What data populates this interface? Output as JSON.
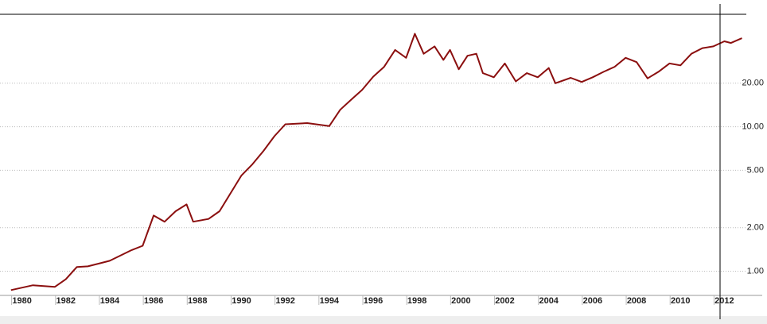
{
  "chart_data": {
    "type": "line",
    "x": [
      1979.5,
      1980.5,
      1981.5,
      1982,
      1982.5,
      1983,
      1984,
      1985,
      1985.5,
      1986,
      1986.5,
      1987,
      1987.5,
      1987.8,
      1988.5,
      1989,
      1990,
      1990.5,
      1991,
      1991.5,
      1992,
      1993,
      1994,
      1994.5,
      1995,
      1995.5,
      1996,
      1996.5,
      1997,
      1997.5,
      1997.9,
      1998.3,
      1998.8,
      1999.2,
      1999.5,
      1999.9,
      2000.3,
      2000.7,
      2001,
      2001.5,
      2002,
      2002.5,
      2003,
      2003.5,
      2004,
      2004.3,
      2005,
      2005.5,
      2006,
      2006.5,
      2007,
      2007.5,
      2008,
      2008.5,
      2009,
      2009.5,
      2010,
      2010.5,
      2011,
      2011.5,
      2012,
      2012.3,
      2012.8
    ],
    "series": [
      {
        "color": "#8b0f0f",
        "values": [
          0.74,
          0.8,
          0.78,
          0.88,
          1.07,
          1.08,
          1.18,
          1.4,
          1.5,
          2.43,
          2.2,
          2.6,
          2.9,
          2.2,
          2.3,
          2.6,
          4.6,
          5.5,
          6.8,
          8.6,
          10.4,
          10.6,
          10.1,
          13.1,
          15.4,
          18,
          22.2,
          26,
          34,
          30,
          44,
          32,
          36,
          29,
          34,
          25,
          31,
          32,
          23.5,
          22,
          27.4,
          20.6,
          23.5,
          22,
          25.5,
          20,
          21.8,
          20.4,
          22,
          24,
          26,
          30,
          28,
          21.6,
          24,
          27.4,
          26.6,
          32,
          35,
          36,
          39,
          38,
          41
        ]
      }
    ],
    "xlim": [
      1979,
      2013
    ],
    "xticks": [
      1980,
      1982,
      1984,
      1986,
      1988,
      1990,
      1992,
      1994,
      1996,
      1998,
      2000,
      2002,
      2004,
      2006,
      2008,
      2010,
      2012
    ],
    "ylim": [
      0.68,
      60
    ],
    "log_y": true,
    "yticks": [
      {
        "value": 1,
        "label": "1.00"
      },
      {
        "value": 2,
        "label": "2.00"
      },
      {
        "value": 5,
        "label": "5.00"
      },
      {
        "value": 10,
        "label": "10.00"
      },
      {
        "value": 20,
        "label": "20.00"
      }
    ],
    "grid": true
  }
}
